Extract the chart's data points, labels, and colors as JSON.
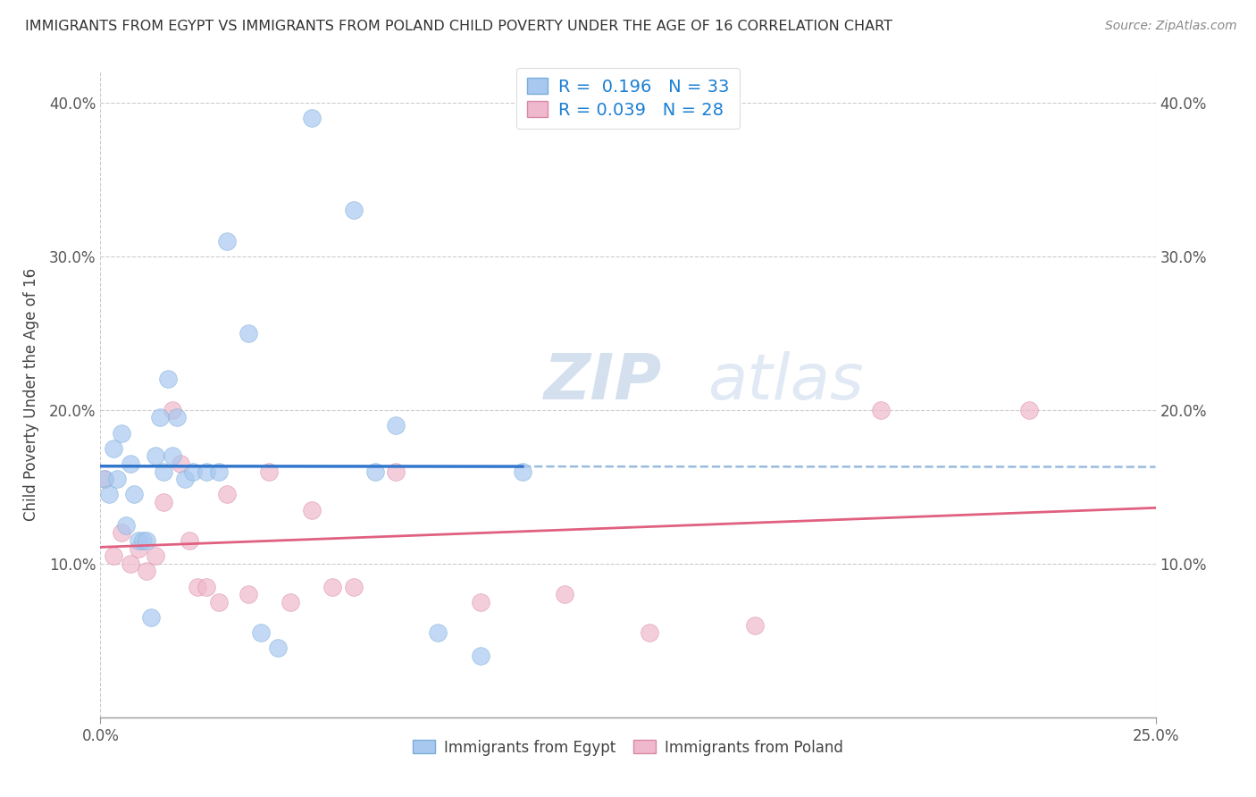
{
  "title": "IMMIGRANTS FROM EGYPT VS IMMIGRANTS FROM POLAND CHILD POVERTY UNDER THE AGE OF 16 CORRELATION CHART",
  "source": "Source: ZipAtlas.com",
  "ylabel": "Child Poverty Under the Age of 16",
  "xlim": [
    0.0,
    0.25
  ],
  "ylim": [
    0.0,
    0.42
  ],
  "x_tick_positions": [
    0.0,
    0.25
  ],
  "x_tick_labels": [
    "0.0%",
    "25.0%"
  ],
  "y_ticks": [
    0.0,
    0.1,
    0.2,
    0.3,
    0.4
  ],
  "y_tick_labels": [
    "",
    "10.0%",
    "20.0%",
    "30.0%",
    "40.0%"
  ],
  "egypt_color": "#a8c8f0",
  "egypt_edge_color": "#7aaed8",
  "poland_color": "#f0b8cc",
  "poland_edge_color": "#d888a8",
  "egypt_R": 0.196,
  "egypt_N": 33,
  "poland_R": 0.039,
  "poland_N": 28,
  "egypt_x": [
    0.001,
    0.002,
    0.003,
    0.004,
    0.005,
    0.006,
    0.007,
    0.008,
    0.009,
    0.01,
    0.011,
    0.012,
    0.013,
    0.014,
    0.015,
    0.016,
    0.017,
    0.018,
    0.02,
    0.022,
    0.025,
    0.028,
    0.03,
    0.035,
    0.038,
    0.042,
    0.05,
    0.06,
    0.065,
    0.07,
    0.08,
    0.09,
    0.1
  ],
  "egypt_y": [
    0.155,
    0.145,
    0.175,
    0.155,
    0.185,
    0.125,
    0.165,
    0.145,
    0.115,
    0.115,
    0.115,
    0.065,
    0.17,
    0.195,
    0.16,
    0.22,
    0.17,
    0.195,
    0.155,
    0.16,
    0.16,
    0.16,
    0.31,
    0.25,
    0.055,
    0.045,
    0.39,
    0.33,
    0.16,
    0.19,
    0.055,
    0.04,
    0.16
  ],
  "poland_x": [
    0.001,
    0.003,
    0.005,
    0.007,
    0.009,
    0.011,
    0.013,
    0.015,
    0.017,
    0.019,
    0.021,
    0.023,
    0.025,
    0.028,
    0.03,
    0.035,
    0.04,
    0.045,
    0.05,
    0.055,
    0.06,
    0.07,
    0.09,
    0.11,
    0.13,
    0.155,
    0.185,
    0.22
  ],
  "poland_y": [
    0.155,
    0.105,
    0.12,
    0.1,
    0.11,
    0.095,
    0.105,
    0.14,
    0.2,
    0.165,
    0.115,
    0.085,
    0.085,
    0.075,
    0.145,
    0.08,
    0.16,
    0.075,
    0.135,
    0.085,
    0.085,
    0.16,
    0.075,
    0.08,
    0.055,
    0.06,
    0.2,
    0.2
  ],
  "watermark_line1": "ZIP",
  "watermark_line2": "atlas",
  "blue_line_color": "#3377cc",
  "dashed_line_color": "#99bbdd",
  "pink_line_color": "#e06080"
}
